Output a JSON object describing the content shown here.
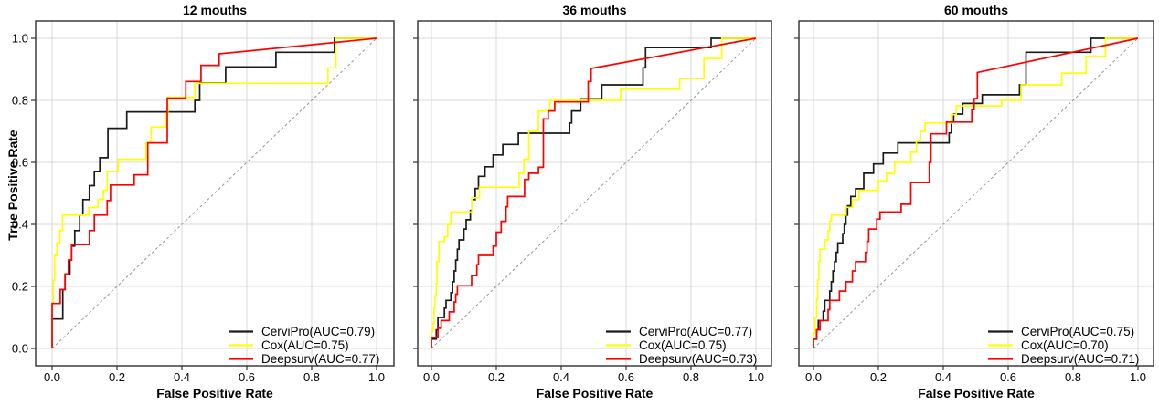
{
  "figure": {
    "y_axis_title": "True Positive Rate",
    "background_color": "#ffffff",
    "grid_color": "#d9d9d9",
    "border_color": "#2f2f2f",
    "diagonal_color": "#979797",
    "tick_color": "#333333",
    "ticks": {
      "values": [
        0.0,
        0.2,
        0.4,
        0.6,
        0.8,
        1.0
      ],
      "labels": [
        "0.0",
        "0.2",
        "0.4",
        "0.6",
        "0.8",
        "1.0"
      ]
    }
  },
  "chart_data": [
    {
      "type": "line",
      "title": "12 mouths",
      "xlabel": "False Positive Rate",
      "ylabel": "True Positive Rate",
      "xlim": [
        0,
        1
      ],
      "ylim": [
        0,
        1
      ],
      "grid": true,
      "diagonal_reference": true,
      "legend_position": "bottom-right",
      "show_y_tick_labels": true,
      "series": [
        {
          "name": "CerviPro",
          "auc": 0.79,
          "label": "CerviPro(AUC=0.79)",
          "color": "#1a1a1a",
          "tail": "step",
          "points": [
            [
              0,
              0
            ],
            [
              0,
              0.095
            ],
            [
              0.033,
              0.19
            ],
            [
              0.04,
              0.24
            ],
            [
              0.055,
              0.285
            ],
            [
              0.06,
              0.33
            ],
            [
              0.07,
              0.38
            ],
            [
              0.085,
              0.43
            ],
            [
              0.095,
              0.48
            ],
            [
              0.115,
              0.525
            ],
            [
              0.13,
              0.57
            ],
            [
              0.147,
              0.615
            ],
            [
              0.172,
              0.71
            ],
            [
              0.23,
              0.763
            ],
            [
              0.44,
              0.8
            ],
            [
              0.455,
              0.856
            ],
            [
              0.535,
              0.908
            ],
            [
              0.69,
              0.955
            ],
            [
              0.87,
              1.0
            ],
            [
              1,
              1
            ]
          ]
        },
        {
          "name": "Cox",
          "auc": 0.75,
          "label": "Cox(AUC=0.75)",
          "color": "#ffff00",
          "tail": "step",
          "points": [
            [
              0,
              0
            ],
            [
              0,
              0.145
            ],
            [
              0.004,
              0.22
            ],
            [
              0.008,
              0.3
            ],
            [
              0.015,
              0.34
            ],
            [
              0.024,
              0.38
            ],
            [
              0.032,
              0.43
            ],
            [
              0.113,
              0.455
            ],
            [
              0.141,
              0.48
            ],
            [
              0.158,
              0.51
            ],
            [
              0.17,
              0.57
            ],
            [
              0.204,
              0.61
            ],
            [
              0.29,
              0.663
            ],
            [
              0.305,
              0.714
            ],
            [
              0.35,
              0.756
            ],
            [
              0.357,
              0.81
            ],
            [
              0.44,
              0.855
            ],
            [
              0.85,
              0.905
            ],
            [
              0.875,
              1.0
            ],
            [
              1,
              1
            ]
          ]
        },
        {
          "name": "Deepsurv",
          "auc": 0.77,
          "label": "Deepsurv(AUC=0.77)",
          "color": "#ff0000",
          "tail": "line-to-end",
          "points": [
            [
              0,
              0
            ],
            [
              0,
              0.145
            ],
            [
              0.025,
              0.19
            ],
            [
              0.04,
              0.24
            ],
            [
              0.05,
              0.285
            ],
            [
              0.06,
              0.335
            ],
            [
              0.115,
              0.38
            ],
            [
              0.13,
              0.43
            ],
            [
              0.17,
              0.477
            ],
            [
              0.18,
              0.527
            ],
            [
              0.253,
              0.56
            ],
            [
              0.295,
              0.663
            ],
            [
              0.355,
              0.807
            ],
            [
              0.412,
              0.861
            ],
            [
              0.459,
              0.913
            ],
            [
              0.515,
              0.95
            ]
          ]
        }
      ]
    },
    {
      "type": "line",
      "title": "36 mouths",
      "xlabel": "False Positive Rate",
      "ylabel": "True Positive Rate",
      "xlim": [
        0,
        1
      ],
      "ylim": [
        0,
        1
      ],
      "grid": true,
      "diagonal_reference": true,
      "legend_position": "bottom-right",
      "show_y_tick_labels": false,
      "series": [
        {
          "name": "CerviPro",
          "auc": 0.77,
          "label": "CerviPro(AUC=0.77)",
          "color": "#1a1a1a",
          "tail": "step",
          "points": [
            [
              0,
              0
            ],
            [
              0,
              0.03
            ],
            [
              0.015,
              0.06
            ],
            [
              0.02,
              0.1
            ],
            [
              0.04,
              0.13
            ],
            [
              0.045,
              0.155
            ],
            [
              0.06,
              0.18
            ],
            [
              0.065,
              0.215
            ],
            [
              0.07,
              0.25
            ],
            [
              0.075,
              0.285
            ],
            [
              0.08,
              0.32
            ],
            [
              0.085,
              0.35
            ],
            [
              0.1,
              0.385
            ],
            [
              0.107,
              0.415
            ],
            [
              0.12,
              0.445
            ],
            [
              0.125,
              0.48
            ],
            [
              0.135,
              0.516
            ],
            [
              0.145,
              0.555
            ],
            [
              0.165,
              0.586
            ],
            [
              0.19,
              0.624
            ],
            [
              0.22,
              0.658
            ],
            [
              0.268,
              0.694
            ],
            [
              0.426,
              0.727
            ],
            [
              0.432,
              0.766
            ],
            [
              0.46,
              0.805
            ],
            [
              0.525,
              0.85
            ],
            [
              0.652,
              0.905
            ],
            [
              0.66,
              0.97
            ],
            [
              0.862,
              1.0
            ],
            [
              1,
              1
            ]
          ]
        },
        {
          "name": "Cox",
          "auc": 0.75,
          "label": "Cox(AUC=0.75)",
          "color": "#ffff00",
          "tail": "step",
          "points": [
            [
              0,
              0
            ],
            [
              0,
              0.055
            ],
            [
              0.005,
              0.08
            ],
            [
              0.008,
              0.13
            ],
            [
              0.01,
              0.17
            ],
            [
              0.015,
              0.21
            ],
            [
              0.017,
              0.28
            ],
            [
              0.023,
              0.345
            ],
            [
              0.04,
              0.36
            ],
            [
              0.05,
              0.4
            ],
            [
              0.06,
              0.44
            ],
            [
              0.125,
              0.486
            ],
            [
              0.148,
              0.52
            ],
            [
              0.27,
              0.565
            ],
            [
              0.285,
              0.61
            ],
            [
              0.3,
              0.7
            ],
            [
              0.33,
              0.766
            ],
            [
              0.365,
              0.8
            ],
            [
              0.583,
              0.836
            ],
            [
              0.765,
              0.87
            ],
            [
              0.84,
              0.935
            ],
            [
              0.895,
              1.0
            ],
            [
              1,
              1
            ]
          ]
        },
        {
          "name": "Deepsurv",
          "auc": 0.73,
          "label": "Deepsurv(AUC=0.73)",
          "color": "#ff0000",
          "tail": "line-to-end",
          "points": [
            [
              0,
              0
            ],
            [
              0,
              0.035
            ],
            [
              0.02,
              0.065
            ],
            [
              0.03,
              0.09
            ],
            [
              0.055,
              0.118
            ],
            [
              0.07,
              0.15
            ],
            [
              0.075,
              0.175
            ],
            [
              0.08,
              0.202
            ],
            [
              0.124,
              0.235
            ],
            [
              0.14,
              0.27
            ],
            [
              0.145,
              0.3
            ],
            [
              0.19,
              0.33
            ],
            [
              0.2,
              0.375
            ],
            [
              0.215,
              0.41
            ],
            [
              0.23,
              0.457
            ],
            [
              0.235,
              0.49
            ],
            [
              0.287,
              0.545
            ],
            [
              0.3,
              0.565
            ],
            [
              0.33,
              0.584
            ],
            [
              0.345,
              0.74
            ],
            [
              0.36,
              0.766
            ],
            [
              0.38,
              0.795
            ],
            [
              0.483,
              0.861
            ],
            [
              0.492,
              0.903
            ]
          ]
        }
      ]
    },
    {
      "type": "line",
      "title": "60 mouths",
      "xlabel": "False Positive Rate",
      "ylabel": "True Positive Rate",
      "xlim": [
        0,
        1
      ],
      "ylim": [
        0,
        1
      ],
      "grid": true,
      "diagonal_reference": true,
      "legend_position": "bottom-right",
      "show_y_tick_labels": false,
      "series": [
        {
          "name": "CerviPro",
          "auc": 0.75,
          "label": "CerviPro(AUC=0.75)",
          "color": "#1a1a1a",
          "tail": "step",
          "points": [
            [
              0,
              0
            ],
            [
              0,
              0.03
            ],
            [
              0.01,
              0.06
            ],
            [
              0.015,
              0.09
            ],
            [
              0.03,
              0.12
            ],
            [
              0.035,
              0.155
            ],
            [
              0.05,
              0.185
            ],
            [
              0.055,
              0.215
            ],
            [
              0.06,
              0.25
            ],
            [
              0.065,
              0.28
            ],
            [
              0.07,
              0.31
            ],
            [
              0.075,
              0.34
            ],
            [
              0.09,
              0.37
            ],
            [
              0.095,
              0.4
            ],
            [
              0.1,
              0.43
            ],
            [
              0.105,
              0.46
            ],
            [
              0.115,
              0.49
            ],
            [
              0.13,
              0.515
            ],
            [
              0.155,
              0.565
            ],
            [
              0.185,
              0.595
            ],
            [
              0.215,
              0.63
            ],
            [
              0.26,
              0.663
            ],
            [
              0.418,
              0.695
            ],
            [
              0.425,
              0.73
            ],
            [
              0.432,
              0.756
            ],
            [
              0.46,
              0.79
            ],
            [
              0.52,
              0.818
            ],
            [
              0.635,
              0.85
            ],
            [
              0.655,
              0.955
            ],
            [
              0.855,
              1.0
            ],
            [
              1,
              1
            ]
          ]
        },
        {
          "name": "Cox",
          "auc": 0.7,
          "label": "Cox(AUC=0.70)",
          "color": "#ffff00",
          "tail": "step",
          "points": [
            [
              0,
              0
            ],
            [
              0,
              0.05
            ],
            [
              0.005,
              0.1
            ],
            [
              0.01,
              0.16
            ],
            [
              0.013,
              0.22
            ],
            [
              0.016,
              0.28
            ],
            [
              0.02,
              0.32
            ],
            [
              0.035,
              0.35
            ],
            [
              0.045,
              0.38
            ],
            [
              0.05,
              0.41
            ],
            [
              0.055,
              0.43
            ],
            [
              0.1,
              0.455
            ],
            [
              0.12,
              0.48
            ],
            [
              0.14,
              0.51
            ],
            [
              0.2,
              0.54
            ],
            [
              0.225,
              0.565
            ],
            [
              0.25,
              0.6
            ],
            [
              0.3,
              0.633
            ],
            [
              0.317,
              0.668
            ],
            [
              0.33,
              0.7
            ],
            [
              0.344,
              0.727
            ],
            [
              0.425,
              0.754
            ],
            [
              0.44,
              0.782
            ],
            [
              0.58,
              0.8
            ],
            [
              0.64,
              0.85
            ],
            [
              0.765,
              0.888
            ],
            [
              0.84,
              0.942
            ],
            [
              0.9,
              1.0
            ],
            [
              1,
              1
            ]
          ]
        },
        {
          "name": "Deepsurv",
          "auc": 0.71,
          "label": "Deepsurv(AUC=0.71)",
          "color": "#ff0000",
          "tail": "line-to-end",
          "points": [
            [
              0,
              0
            ],
            [
              0,
              0.03
            ],
            [
              0.01,
              0.06
            ],
            [
              0.02,
              0.09
            ],
            [
              0.045,
              0.125
            ],
            [
              0.05,
              0.155
            ],
            [
              0.08,
              0.185
            ],
            [
              0.1,
              0.215
            ],
            [
              0.12,
              0.25
            ],
            [
              0.13,
              0.28
            ],
            [
              0.16,
              0.31
            ],
            [
              0.165,
              0.345
            ],
            [
              0.17,
              0.385
            ],
            [
              0.195,
              0.417
            ],
            [
              0.205,
              0.44
            ],
            [
              0.27,
              0.465
            ],
            [
              0.3,
              0.535
            ],
            [
              0.357,
              0.6
            ],
            [
              0.362,
              0.692
            ],
            [
              0.41,
              0.73
            ],
            [
              0.488,
              0.77
            ],
            [
              0.495,
              0.806
            ],
            [
              0.505,
              0.89
            ]
          ]
        }
      ]
    }
  ]
}
